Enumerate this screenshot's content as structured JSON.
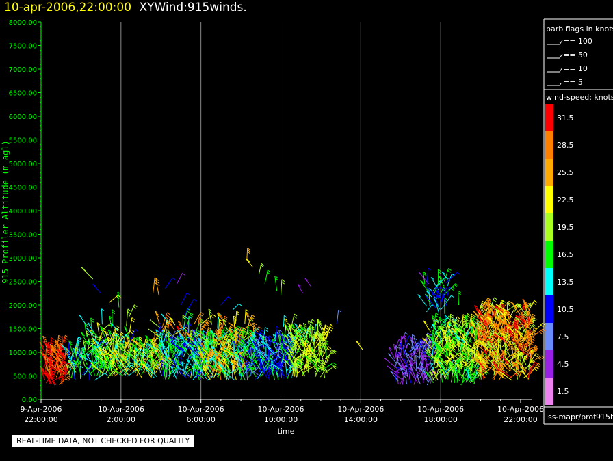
{
  "header": {
    "timestamp": "10-apr-2006,22:00:00",
    "name": "XYWind:915winds."
  },
  "notice": "REAL-TIME DATA, NOT CHECKED FOR QUALITY",
  "source": "iss-mapr/prof915h",
  "barb_legend": {
    "title": "barb flags in knots",
    "items": [
      {
        "label": "== 100"
      },
      {
        "label": "== 50"
      },
      {
        "label": "== 10"
      },
      {
        "label": "== 5"
      }
    ]
  },
  "speed_legend": {
    "title": "wind-speed: knots",
    "bins": [
      {
        "label": "31.5",
        "color": "#ff0000"
      },
      {
        "label": "28.5",
        "color": "#ff7f00"
      },
      {
        "label": "25.5",
        "color": "#ffaa00"
      },
      {
        "label": "22.5",
        "color": "#ffff00"
      },
      {
        "label": "19.5",
        "color": "#a8ff20"
      },
      {
        "label": "16.5",
        "color": "#00ff00"
      },
      {
        "label": "13.5",
        "color": "#00ffff"
      },
      {
        "label": "10.5",
        "color": "#0000ff"
      },
      {
        "label": "7.5",
        "color": "#6a8cff"
      },
      {
        "label": "4.5",
        "color": "#9a20e8"
      },
      {
        "label": "1.5",
        "color": "#ee82ee"
      }
    ]
  },
  "chart_data": {
    "type": "scatter",
    "title": "",
    "xlabel": "time",
    "ylabel": "915 Profiler Altitude (m agl)",
    "ylim": [
      0,
      8000
    ],
    "xlim_hours": [
      0,
      24
    ],
    "y_ticks": [
      "0.00",
      "500.00",
      "1000.00",
      "1500.00",
      "2000.00",
      "2500.00",
      "3000.00",
      "3500.00",
      "4000.00",
      "4500.00",
      "5000.00",
      "5500.00",
      "6000.00",
      "6500.00",
      "7000.00",
      "7500.00",
      "8000.00"
    ],
    "x_ticks": [
      {
        "date": "9-Apr-2006",
        "time": "22:00:00",
        "h": 0
      },
      {
        "date": "10-Apr-2006",
        "time": "2:00:00",
        "h": 4
      },
      {
        "date": "10-Apr-2006",
        "time": "6:00:00",
        "h": 8
      },
      {
        "date": "10-Apr-2006",
        "time": "10:00:00",
        "h": 12
      },
      {
        "date": "10-Apr-2006",
        "time": "14:00:00",
        "h": 16
      },
      {
        "date": "10-Apr-2006",
        "time": "18:00:00",
        "h": 20
      },
      {
        "date": "10-Apr-2006",
        "time": "22:00:00",
        "h": 24
      }
    ],
    "vertical_gridlines": true,
    "axis_color": "#00ff00",
    "wind_clusters": [
      {
        "t0": 0.1,
        "t1": 1.2,
        "z0": 300,
        "z1": 1000,
        "speed": [
          27,
          34
        ],
        "step": 0.1
      },
      {
        "t0": 1.3,
        "t1": 2.8,
        "z0": 400,
        "z1": 1000,
        "speed": [
          10,
          20
        ],
        "step": 0.12
      },
      {
        "t0": 2.8,
        "t1": 6.0,
        "z0": 450,
        "z1": 1100,
        "speed": [
          13,
          25
        ],
        "step": 0.1
      },
      {
        "t0": 2.2,
        "t1": 4.2,
        "z0": 1000,
        "z1": 1600,
        "speed": [
          10,
          24
        ],
        "step": 0.25
      },
      {
        "t0": 6.0,
        "t1": 8.5,
        "z0": 400,
        "z1": 1200,
        "speed": [
          8,
          19
        ],
        "step": 0.1
      },
      {
        "t0": 5.8,
        "t1": 8.0,
        "z0": 1200,
        "z1": 1600,
        "speed": [
          8,
          31
        ],
        "step": 0.25
      },
      {
        "t0": 8.0,
        "t1": 10.0,
        "z0": 400,
        "z1": 1300,
        "speed": [
          12,
          28
        ],
        "step": 0.1
      },
      {
        "t0": 8.5,
        "t1": 10.5,
        "z0": 1200,
        "z1": 1600,
        "speed": [
          14,
          31
        ],
        "step": 0.25
      },
      {
        "t0": 10.0,
        "t1": 12.5,
        "z0": 400,
        "z1": 1200,
        "speed": [
          8,
          17
        ],
        "step": 0.1
      },
      {
        "t0": 12.5,
        "t1": 14.2,
        "z0": 450,
        "z1": 1300,
        "speed": [
          17,
          23
        ],
        "step": 0.1
      },
      {
        "t0": 12.0,
        "t1": 14.0,
        "z0": 1200,
        "z1": 1500,
        "speed": [
          12,
          22
        ],
        "step": 0.3
      },
      {
        "t0": 17.7,
        "t1": 19.5,
        "z0": 300,
        "z1": 1100,
        "speed": [
          3,
          10
        ],
        "step": 0.12
      },
      {
        "t0": 19.5,
        "t1": 21.8,
        "z0": 300,
        "z1": 1500,
        "speed": [
          14,
          23
        ],
        "step": 0.1
      },
      {
        "t0": 21.8,
        "t1": 24.6,
        "z0": 400,
        "z1": 1800,
        "speed": [
          18,
          32
        ],
        "step": 0.1
      },
      {
        "t0": 19.2,
        "t1": 20.2,
        "z0": 1800,
        "z1": 2500,
        "speed": [
          10,
          17
        ],
        "step": 0.2
      }
    ],
    "isolated_barbs": [
      {
        "t": 2.6,
        "z": 2550,
        "speed": 20
      },
      {
        "t": 3.0,
        "z": 2250,
        "speed": 12
      },
      {
        "t": 3.4,
        "z": 2050,
        "speed": 22
      },
      {
        "t": 3.9,
        "z": 1950,
        "speed": 18
      },
      {
        "t": 4.4,
        "z": 1750,
        "speed": 19
      },
      {
        "t": 5.6,
        "z": 2250,
        "speed": 27
      },
      {
        "t": 5.9,
        "z": 2200,
        "speed": 25
      },
      {
        "t": 6.2,
        "z": 2350,
        "speed": 10
      },
      {
        "t": 6.8,
        "z": 2450,
        "speed": 4
      },
      {
        "t": 7.0,
        "z": 2000,
        "speed": 12
      },
      {
        "t": 7.2,
        "z": 1800,
        "speed": 10
      },
      {
        "t": 9.0,
        "z": 2000,
        "speed": 12
      },
      {
        "t": 9.6,
        "z": 1900,
        "speed": 14
      },
      {
        "t": 10.3,
        "z": 2950,
        "speed": 26
      },
      {
        "t": 10.6,
        "z": 2800,
        "speed": 22
      },
      {
        "t": 10.9,
        "z": 2650,
        "speed": 20
      },
      {
        "t": 11.2,
        "z": 2450,
        "speed": 18
      },
      {
        "t": 11.8,
        "z": 2300,
        "speed": 16
      },
      {
        "t": 12.0,
        "z": 2200,
        "speed": 20
      },
      {
        "t": 13.1,
        "z": 2250,
        "speed": 4
      },
      {
        "t": 13.5,
        "z": 2400,
        "speed": 6
      },
      {
        "t": 14.8,
        "z": 1600,
        "speed": 8
      },
      {
        "t": 16.1,
        "z": 1050,
        "speed": 24
      },
      {
        "t": 19.4,
        "z": 2450,
        "speed": 6
      },
      {
        "t": 19.9,
        "z": 2150,
        "speed": 12
      },
      {
        "t": 20.9,
        "z": 2000,
        "speed": 16
      }
    ]
  }
}
